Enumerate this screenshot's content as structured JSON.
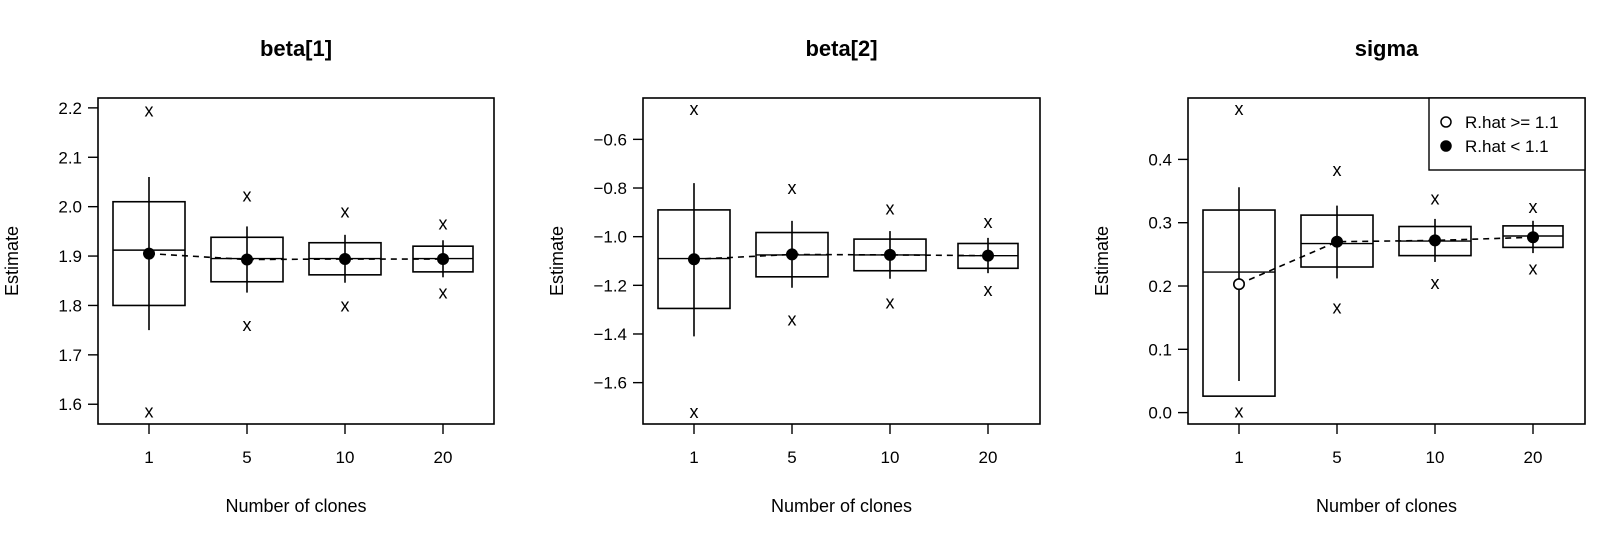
{
  "chart_data": [
    {
      "type": "box",
      "title": "beta[1]",
      "xlabel": "Number of clones",
      "ylabel": "Estimate",
      "categories": [
        "1",
        "5",
        "10",
        "20"
      ],
      "ylim": [
        1.56,
        2.22
      ],
      "yticks": [
        "1.6",
        "1.7",
        "1.8",
        "1.9",
        "2.0",
        "2.1",
        "2.2"
      ],
      "grid": false,
      "points": [
        {
          "clones": "1",
          "mean": 1.905,
          "rhat_ok": true,
          "q_low": 1.8,
          "q_high": 2.01,
          "median": 1.912,
          "ci_low": 1.75,
          "ci_high": 2.06,
          "min": 1.585,
          "max": 2.195
        },
        {
          "clones": "5",
          "mean": 1.893,
          "rhat_ok": true,
          "q_low": 1.848,
          "q_high": 1.938,
          "median": 1.895,
          "ci_low": 1.826,
          "ci_high": 1.96,
          "min": 1.76,
          "max": 2.023
        },
        {
          "clones": "10",
          "mean": 1.894,
          "rhat_ok": true,
          "q_low": 1.862,
          "q_high": 1.927,
          "median": 1.895,
          "ci_low": 1.846,
          "ci_high": 1.943,
          "min": 1.8,
          "max": 1.99
        },
        {
          "clones": "20",
          "mean": 1.894,
          "rhat_ok": true,
          "q_low": 1.868,
          "q_high": 1.92,
          "median": 1.895,
          "ci_low": 1.857,
          "ci_high": 1.932,
          "min": 1.826,
          "max": 1.966
        }
      ]
    },
    {
      "type": "box",
      "title": "beta[2]",
      "xlabel": "Number of clones",
      "ylabel": "Estimate",
      "categories": [
        "1",
        "5",
        "10",
        "20"
      ],
      "ylim": [
        -1.77,
        -0.43
      ],
      "yticks": [
        "−1.6",
        "−1.4",
        "−1.2",
        "−1.0",
        "−0.8",
        "−0.6"
      ],
      "grid": false,
      "points": [
        {
          "clones": "1",
          "mean": -1.093,
          "rhat_ok": true,
          "q_low": -1.295,
          "q_high": -0.89,
          "median": -1.09,
          "ci_low": -1.41,
          "ci_high": -0.78,
          "min": -1.72,
          "max": -0.475
        },
        {
          "clones": "5",
          "mean": -1.073,
          "rhat_ok": true,
          "q_low": -1.165,
          "q_high": -0.983,
          "median": -1.075,
          "ci_low": -1.21,
          "ci_high": -0.935,
          "min": -1.34,
          "max": -0.8
        },
        {
          "clones": "10",
          "mean": -1.075,
          "rhat_ok": true,
          "q_low": -1.14,
          "q_high": -1.01,
          "median": -1.075,
          "ci_low": -1.173,
          "ci_high": -0.977,
          "min": -1.27,
          "max": -0.885
        },
        {
          "clones": "20",
          "mean": -1.078,
          "rhat_ok": true,
          "q_low": -1.13,
          "q_high": -1.028,
          "median": -1.078,
          "ci_low": -1.15,
          "ci_high": -1.005,
          "min": -1.22,
          "max": -0.94
        }
      ]
    },
    {
      "type": "box",
      "title": "sigma",
      "xlabel": "Number of clones",
      "ylabel": "Estimate",
      "categories": [
        "1",
        "5",
        "10",
        "20"
      ],
      "ylim": [
        -0.018,
        0.497
      ],
      "yticks": [
        "0.0",
        "0.1",
        "0.2",
        "0.3",
        "0.4"
      ],
      "grid": false,
      "legend": {
        "position": "top-right",
        "entries": [
          "R.hat >= 1.1",
          "R.hat < 1.1"
        ]
      },
      "points": [
        {
          "clones": "1",
          "mean": 0.203,
          "rhat_ok": false,
          "q_low": 0.026,
          "q_high": 0.32,
          "median": 0.222,
          "ci_low": 0.05,
          "ci_high": 0.356,
          "min": 0.002,
          "max": 0.48
        },
        {
          "clones": "5",
          "mean": 0.27,
          "rhat_ok": true,
          "q_low": 0.23,
          "q_high": 0.312,
          "median": 0.267,
          "ci_low": 0.212,
          "ci_high": 0.327,
          "min": 0.166,
          "max": 0.383
        },
        {
          "clones": "10",
          "mean": 0.272,
          "rhat_ok": true,
          "q_low": 0.248,
          "q_high": 0.294,
          "median": 0.271,
          "ci_low": 0.238,
          "ci_high": 0.306,
          "min": 0.205,
          "max": 0.338
        },
        {
          "clones": "20",
          "mean": 0.277,
          "rhat_ok": true,
          "q_low": 0.261,
          "q_high": 0.295,
          "median": 0.279,
          "ci_low": 0.252,
          "ci_high": 0.303,
          "min": 0.228,
          "max": 0.325
        }
      ]
    }
  ]
}
